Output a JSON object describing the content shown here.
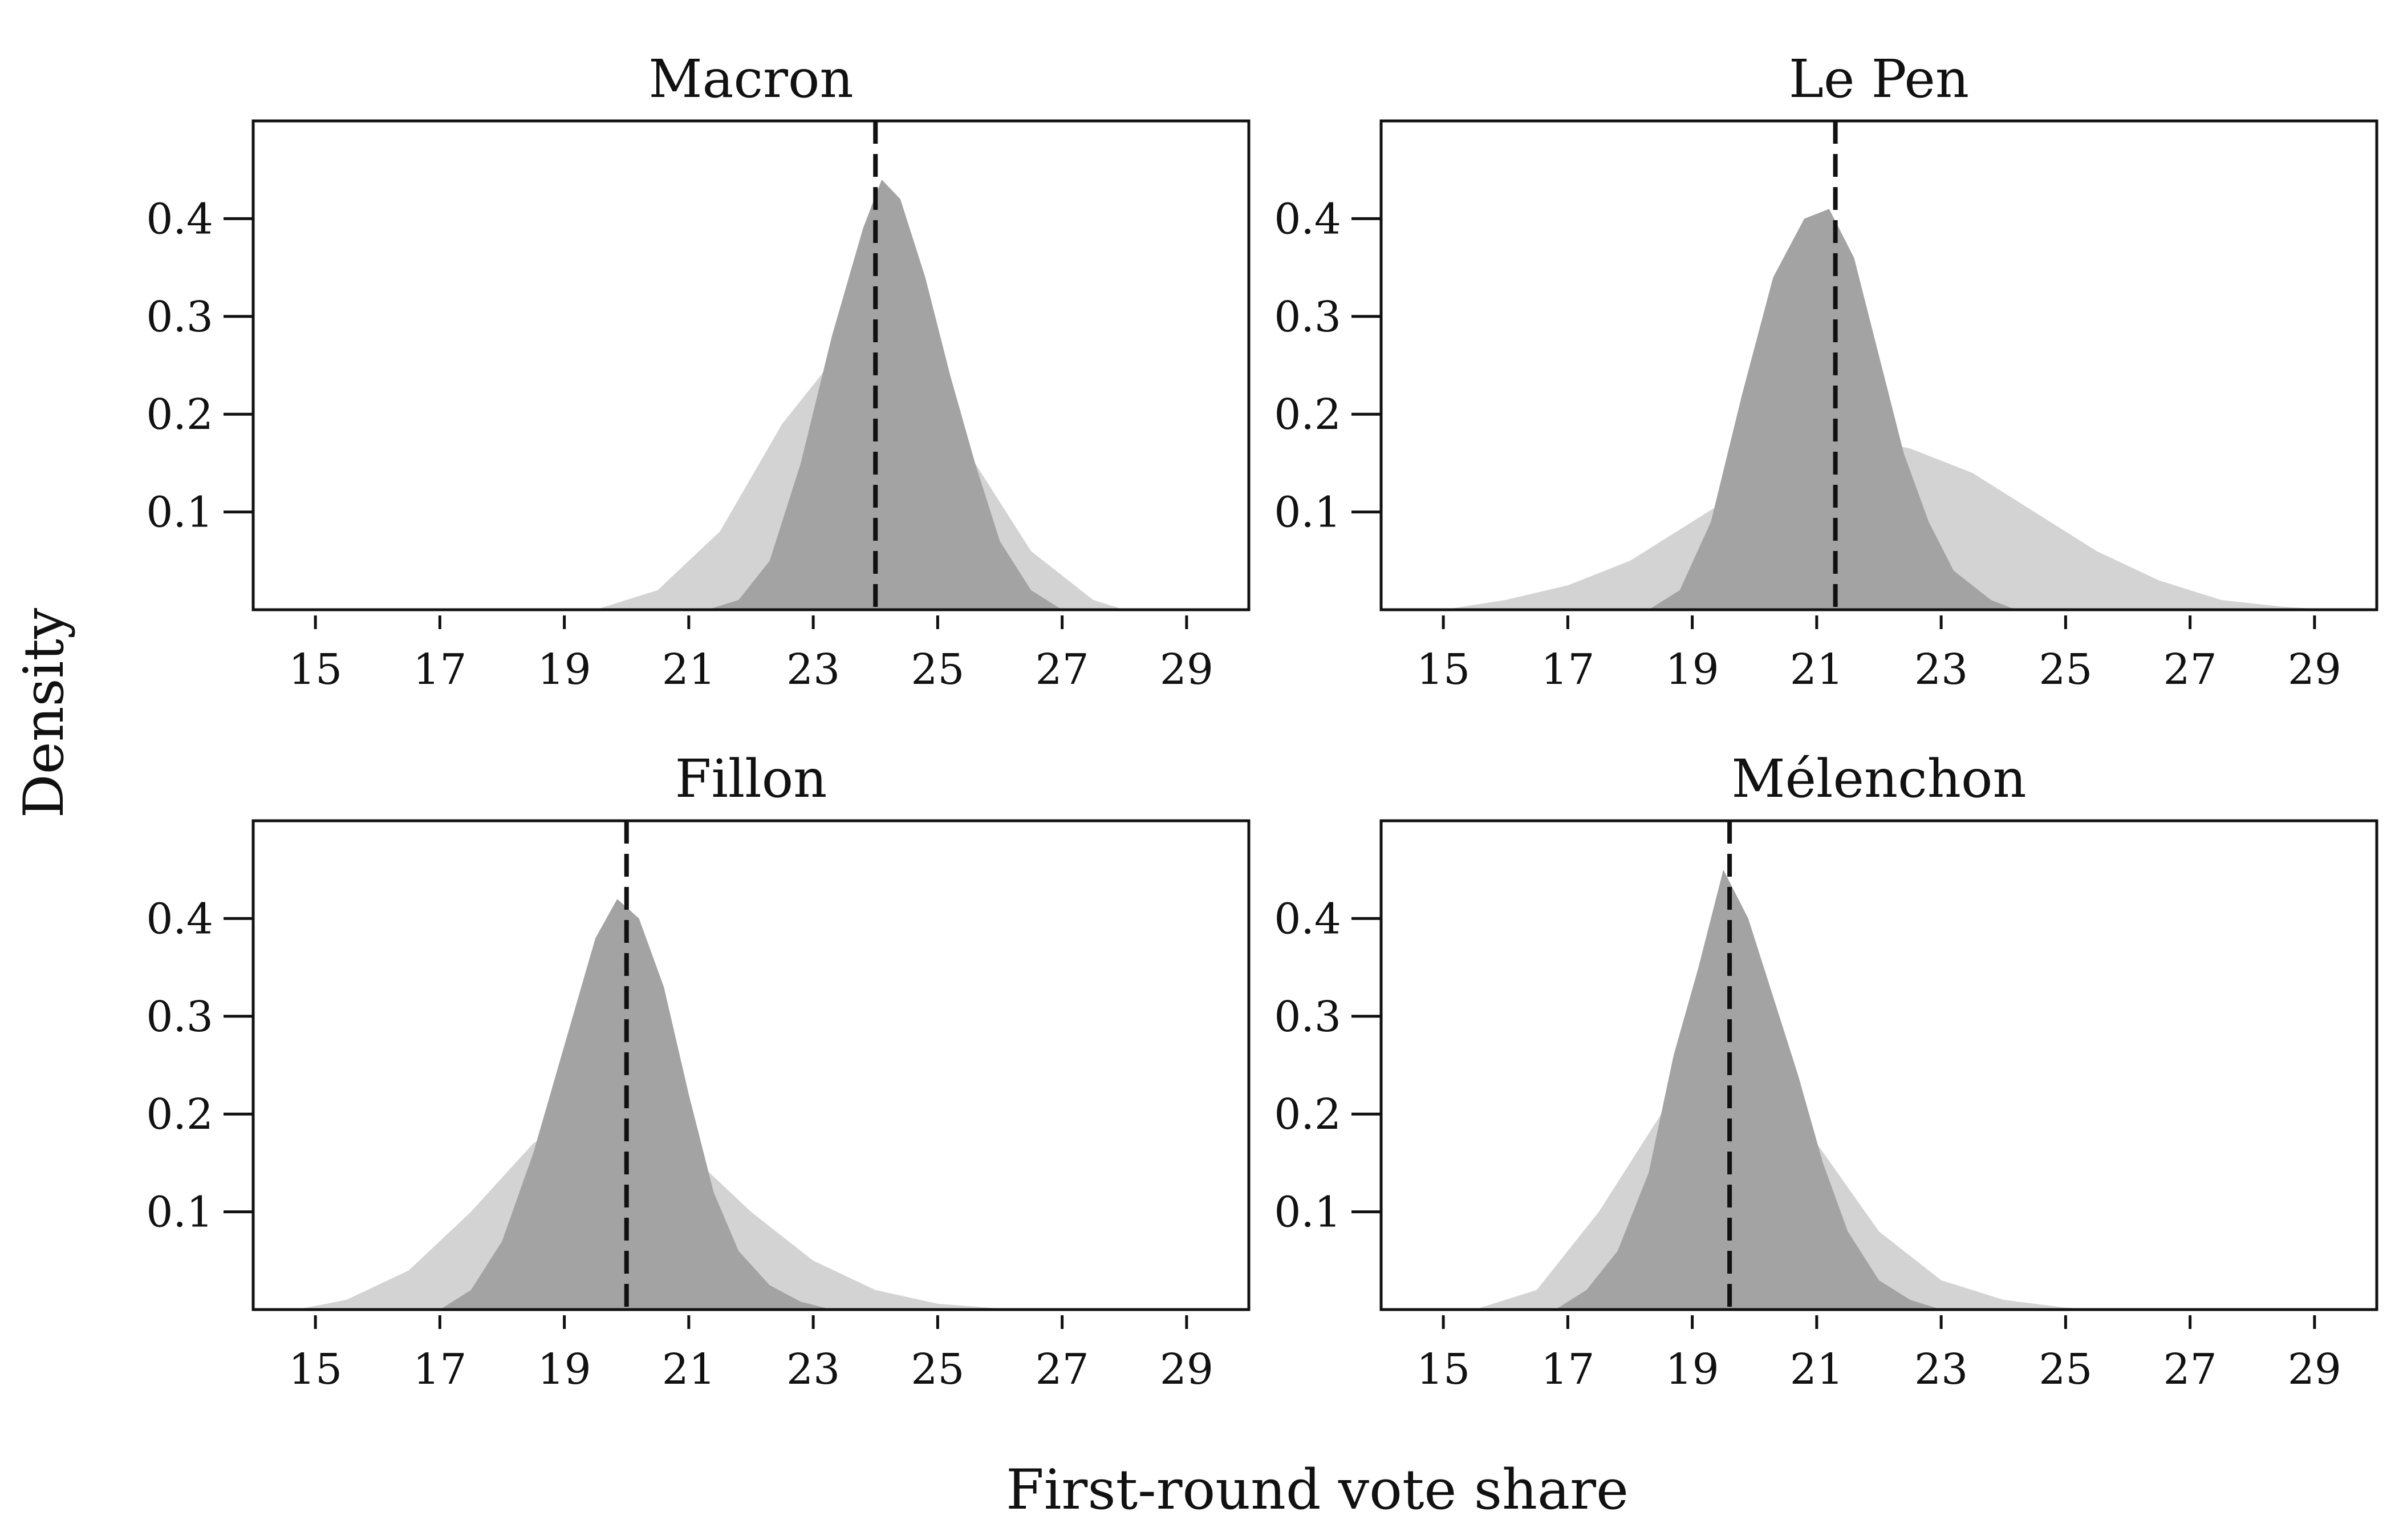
{
  "figure": {
    "xlabel": "First-round vote share",
    "ylabel": "Density"
  },
  "chart_data": [
    {
      "type": "area",
      "title": "Macron",
      "xlim": [
        14,
        30
      ],
      "ylim": [
        0,
        0.5
      ],
      "x_ticks": [
        15,
        17,
        19,
        21,
        23,
        25,
        27,
        29
      ],
      "y_ticks": [
        0.1,
        0.2,
        0.3,
        0.4
      ],
      "marker_x": 24.0,
      "series": [
        {
          "x": [
            19.5,
            20.5,
            21.5,
            22.5,
            23.5,
            24.0,
            24.5,
            25.5,
            26.5,
            27.5,
            28.0
          ],
          "y": [
            0.0,
            0.02,
            0.08,
            0.19,
            0.27,
            0.275,
            0.25,
            0.16,
            0.06,
            0.01,
            0.0
          ],
          "color": "#d3d3d3"
        },
        {
          "x": [
            21.3,
            21.8,
            22.3,
            22.8,
            23.3,
            23.8,
            24.1,
            24.4,
            24.8,
            25.2,
            25.6,
            26.0,
            26.5,
            27.0
          ],
          "y": [
            0.0,
            0.01,
            0.05,
            0.15,
            0.28,
            0.39,
            0.44,
            0.42,
            0.34,
            0.24,
            0.15,
            0.07,
            0.02,
            0.0
          ],
          "color": "#a3a3a3"
        }
      ]
    },
    {
      "type": "area",
      "title": "Le Pen",
      "xlim": [
        14,
        30
      ],
      "ylim": [
        0,
        0.5
      ],
      "x_ticks": [
        15,
        17,
        19,
        21,
        23,
        25,
        27,
        29
      ],
      "y_ticks": [
        0.1,
        0.2,
        0.3,
        0.4
      ],
      "marker_x": 21.3,
      "series": [
        {
          "x": [
            15.0,
            16.0,
            17.0,
            18.0,
            19.0,
            20.0,
            21.0,
            21.7,
            22.5,
            23.5,
            24.5,
            25.5,
            26.5,
            27.5,
            28.5,
            29.3
          ],
          "y": [
            0.0,
            0.01,
            0.025,
            0.05,
            0.09,
            0.13,
            0.165,
            0.175,
            0.165,
            0.14,
            0.1,
            0.06,
            0.03,
            0.01,
            0.003,
            0.0
          ],
          "color": "#d3d3d3"
        },
        {
          "x": [
            18.3,
            18.8,
            19.3,
            19.8,
            20.3,
            20.8,
            21.2,
            21.6,
            22.0,
            22.4,
            22.8,
            23.2,
            23.8,
            24.2
          ],
          "y": [
            0.0,
            0.02,
            0.09,
            0.22,
            0.34,
            0.4,
            0.41,
            0.36,
            0.26,
            0.16,
            0.09,
            0.04,
            0.01,
            0.0
          ],
          "color": "#a3a3a3"
        }
      ]
    },
    {
      "type": "area",
      "title": "Fillon",
      "xlim": [
        14,
        30
      ],
      "ylim": [
        0,
        0.5
      ],
      "x_ticks": [
        15,
        17,
        19,
        21,
        23,
        25,
        27,
        29
      ],
      "y_ticks": [
        0.1,
        0.2,
        0.3,
        0.4
      ],
      "marker_x": 20.0,
      "series": [
        {
          "x": [
            14.7,
            15.5,
            16.5,
            17.5,
            18.5,
            19.5,
            20.0,
            21.0,
            22.0,
            23.0,
            24.0,
            25.0,
            26.0,
            26.5
          ],
          "y": [
            0.0,
            0.01,
            0.04,
            0.1,
            0.17,
            0.205,
            0.2,
            0.16,
            0.1,
            0.05,
            0.02,
            0.006,
            0.001,
            0.0
          ],
          "color": "#d3d3d3"
        },
        {
          "x": [
            17.0,
            17.5,
            18.0,
            18.5,
            19.0,
            19.5,
            19.85,
            20.2,
            20.6,
            21.0,
            21.4,
            21.8,
            22.3,
            22.8,
            23.3
          ],
          "y": [
            0.0,
            0.02,
            0.07,
            0.16,
            0.27,
            0.38,
            0.42,
            0.4,
            0.33,
            0.22,
            0.12,
            0.06,
            0.025,
            0.008,
            0.0
          ],
          "color": "#a3a3a3"
        }
      ]
    },
    {
      "type": "area",
      "title": "Mélenchon",
      "xlim": [
        14,
        30
      ],
      "ylim": [
        0,
        0.5
      ],
      "x_ticks": [
        15,
        17,
        19,
        21,
        23,
        25,
        27,
        29
      ],
      "y_ticks": [
        0.1,
        0.2,
        0.3,
        0.4
      ],
      "marker_x": 19.6,
      "series": [
        {
          "x": [
            15.5,
            16.5,
            17.5,
            18.5,
            19.2,
            19.6,
            20.2,
            21.0,
            22.0,
            23.0,
            24.0,
            25.0,
            25.5
          ],
          "y": [
            0.0,
            0.02,
            0.1,
            0.2,
            0.245,
            0.25,
            0.235,
            0.17,
            0.08,
            0.03,
            0.01,
            0.002,
            0.0
          ],
          "color": "#d3d3d3"
        },
        {
          "x": [
            16.8,
            17.3,
            17.8,
            18.3,
            18.7,
            19.1,
            19.5,
            19.9,
            20.3,
            20.7,
            21.1,
            21.5,
            22.0,
            22.5,
            23.0
          ],
          "y": [
            0.0,
            0.02,
            0.06,
            0.14,
            0.26,
            0.35,
            0.45,
            0.4,
            0.32,
            0.24,
            0.15,
            0.08,
            0.03,
            0.01,
            0.0
          ],
          "color": "#a3a3a3"
        }
      ]
    }
  ]
}
